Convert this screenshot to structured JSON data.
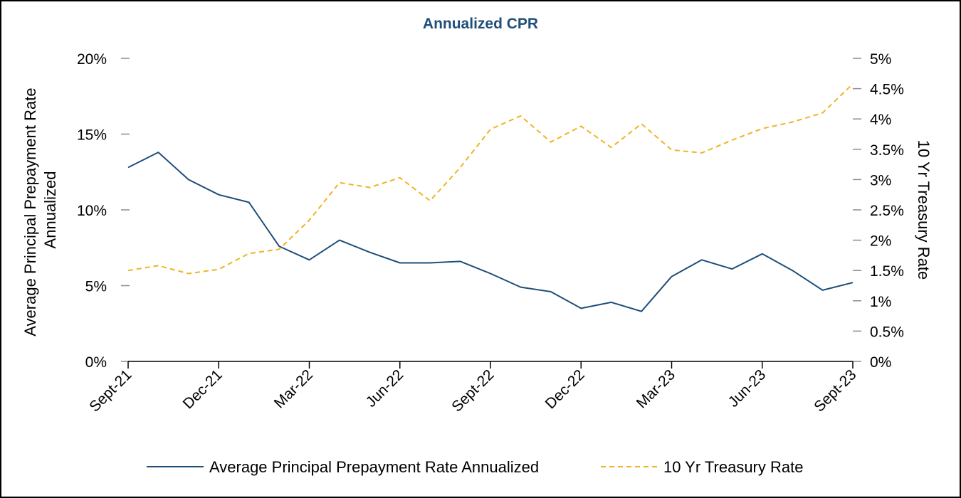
{
  "chart_data": {
    "type": "line",
    "title": "Annualized CPR",
    "xlabel": "",
    "ylabel": "Average Principal Prepayment Rate Annualized",
    "ylabel_lines": [
      "Average Principal Prepayment Rate",
      "Annualized"
    ],
    "y2label": "10 Yr Treasury Rate",
    "ylim": [
      0,
      20
    ],
    "y2lim": [
      0,
      5
    ],
    "yticks": [
      "0%",
      "5%",
      "10%",
      "15%",
      "20%"
    ],
    "y2ticks": [
      "0%",
      "0.5%",
      "1%",
      "1.5%",
      "2%",
      "2.5%",
      "3%",
      "3.5%",
      "4%",
      "4.5%",
      "5%"
    ],
    "x": [
      "Sept-21",
      "Oct-21",
      "Nov-21",
      "Dec-21",
      "Jan-22",
      "Feb-22",
      "Mar-22",
      "Apr-22",
      "May-22",
      "Jun-22",
      "Jul-22",
      "Aug-22",
      "Sept-22",
      "Oct-22",
      "Nov-22",
      "Dec-22",
      "Jan-23",
      "Feb-23",
      "Mar-23",
      "Apr-23",
      "May-23",
      "Jun-23",
      "Jul-23",
      "Aug-23",
      "Sept-23"
    ],
    "x_tick_labels": [
      "Sept-21",
      "Dec-21",
      "Mar-22",
      "Jun-22",
      "Sept-22",
      "Dec-22",
      "Mar-23",
      "Jun-23",
      "Sept-23"
    ],
    "x_tick_every": 3,
    "series": [
      {
        "name": "Average Principal Prepayment Rate Annualized",
        "axis": "left",
        "color": "#1f4e79",
        "style": "solid",
        "values": [
          12.8,
          13.8,
          12.0,
          11.0,
          10.5,
          7.6,
          6.7,
          8.0,
          7.2,
          6.5,
          6.5,
          6.6,
          5.8,
          4.9,
          4.6,
          3.5,
          3.9,
          3.3,
          5.6,
          6.7,
          6.1,
          7.1,
          6.0,
          4.7,
          5.2
        ]
      },
      {
        "name": "10 Yr Treasury Rate",
        "axis": "right",
        "color": "#f0b323",
        "style": "dashed",
        "values": [
          1.5,
          1.58,
          1.45,
          1.52,
          1.78,
          1.85,
          2.33,
          2.95,
          2.87,
          3.03,
          2.65,
          3.2,
          3.83,
          4.05,
          3.62,
          3.88,
          3.53,
          3.92,
          3.49,
          3.44,
          3.65,
          3.84,
          3.95,
          4.1,
          4.58
        ]
      }
    ],
    "legend_position": "bottom",
    "grid": false
  }
}
